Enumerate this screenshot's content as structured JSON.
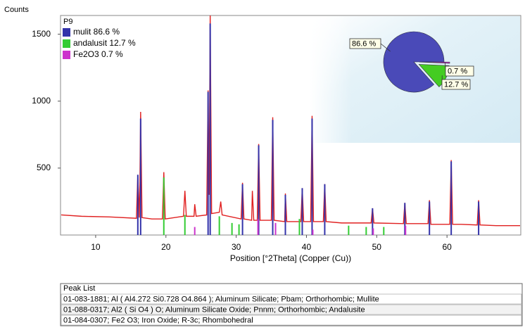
{
  "chart_data": [
    {
      "type": "line",
      "y_label": "Counts",
      "x_label": "Position [°2Theta] (Copper (Cu))",
      "panel_label": "P9",
      "xlim": [
        5,
        70.5
      ],
      "ylim": [
        0,
        1640
      ],
      "xticks": [
        10,
        20,
        30,
        40,
        50,
        60
      ],
      "yticks": [
        500,
        1000,
        1500
      ],
      "series": [
        {
          "color": "#e02020",
          "x": [
            5.1,
            8,
            12,
            15.8,
            16.0,
            16.2,
            16.3,
            16.4,
            16.6,
            18,
            19.5,
            19.7,
            19.9,
            22.5,
            22.7,
            22.9,
            24.0,
            24.1,
            24.3,
            25.8,
            26.0,
            26.15,
            26.3,
            26.5,
            27.6,
            27.8,
            28,
            30.7,
            30.9,
            31.1,
            32.2,
            32.3,
            32.5,
            33.0,
            33.2,
            33.4,
            35.0,
            35.2,
            35.4,
            36.9,
            37.0,
            37.2,
            39.2,
            39.4,
            39.6,
            40.6,
            40.8,
            41.0,
            42.4,
            42.6,
            42.8,
            45,
            49.2,
            49.4,
            49.6,
            53.8,
            54.0,
            54.2,
            57.3,
            57.5,
            57.7,
            60.4,
            60.6,
            60.8,
            62,
            64.3,
            64.5,
            64.7,
            67,
            70.4
          ],
          "values": [
            150,
            140,
            135,
            125,
            450,
            130,
            400,
            920,
            130,
            120,
            120,
            470,
            120,
            140,
            330,
            140,
            140,
            230,
            140,
            150,
            1080,
            300,
            1640,
            160,
            170,
            250,
            150,
            120,
            390,
            120,
            110,
            330,
            110,
            110,
            680,
            110,
            110,
            880,
            110,
            100,
            310,
            100,
            100,
            350,
            100,
            100,
            890,
            100,
            100,
            380,
            100,
            90,
            90,
            200,
            90,
            85,
            240,
            85,
            85,
            260,
            80,
            80,
            560,
            80,
            80,
            75,
            260,
            75,
            70,
            70
          ]
        }
      ],
      "sticks": [
        {
          "name": "mulit 86.6 %",
          "color": "#3333aa",
          "x": [
            16.0,
            16.4,
            26.0,
            26.3,
            30.9,
            33.2,
            35.2,
            37.0,
            39.4,
            40.8,
            42.6,
            49.4,
            54.0,
            57.5,
            60.6,
            64.5
          ],
          "values": [
            450,
            870,
            1070,
            1580,
            380,
            670,
            860,
            300,
            350,
            870,
            380,
            200,
            240,
            250,
            550,
            250
          ]
        },
        {
          "name": "andalusit 12.7 %",
          "color": "#33cc33",
          "x": [
            19.7,
            22.7,
            27.6,
            29.4,
            30.4,
            39.0,
            46.0,
            48.5,
            51.0
          ],
          "values": [
            430,
            150,
            140,
            90,
            80,
            120,
            70,
            60,
            60
          ]
        },
        {
          "name": "Fe2O3 0.7 %",
          "color": "#cc33cc",
          "x": [
            24.1,
            33.1,
            35.6,
            40.9,
            49.5,
            54.1
          ],
          "values": [
            60,
            120,
            90,
            40,
            50,
            70
          ]
        }
      ]
    },
    {
      "type": "pie",
      "values": [
        86.6,
        12.7,
        0.7
      ],
      "value_labels": [
        "86.6 %",
        "12.7 %",
        "0.7 %"
      ],
      "colors": [
        "#4a4ab8",
        "#44cc22",
        "#cc33cc"
      ]
    }
  ],
  "peak_list": {
    "title": "Peak List",
    "rows": [
      {
        "text": "01-083-1881; Al ( Al4.272 Si0.728 O4.864 ); Aluminum Silicate; Pbam; Orthorhombic; Mullite",
        "color": "#2a2aa0"
      },
      {
        "text": "01-088-0317; Al2 ( Si O4 ) O; Aluminum Silicate Oxide; Pnnm; Orthorhombic; Andalusite",
        "color": "#66cc33"
      },
      {
        "text": "01-084-0307; Fe2 O3; Iron Oxide; R-3c; Rhombohedral",
        "color": "#cc33cc"
      }
    ]
  }
}
